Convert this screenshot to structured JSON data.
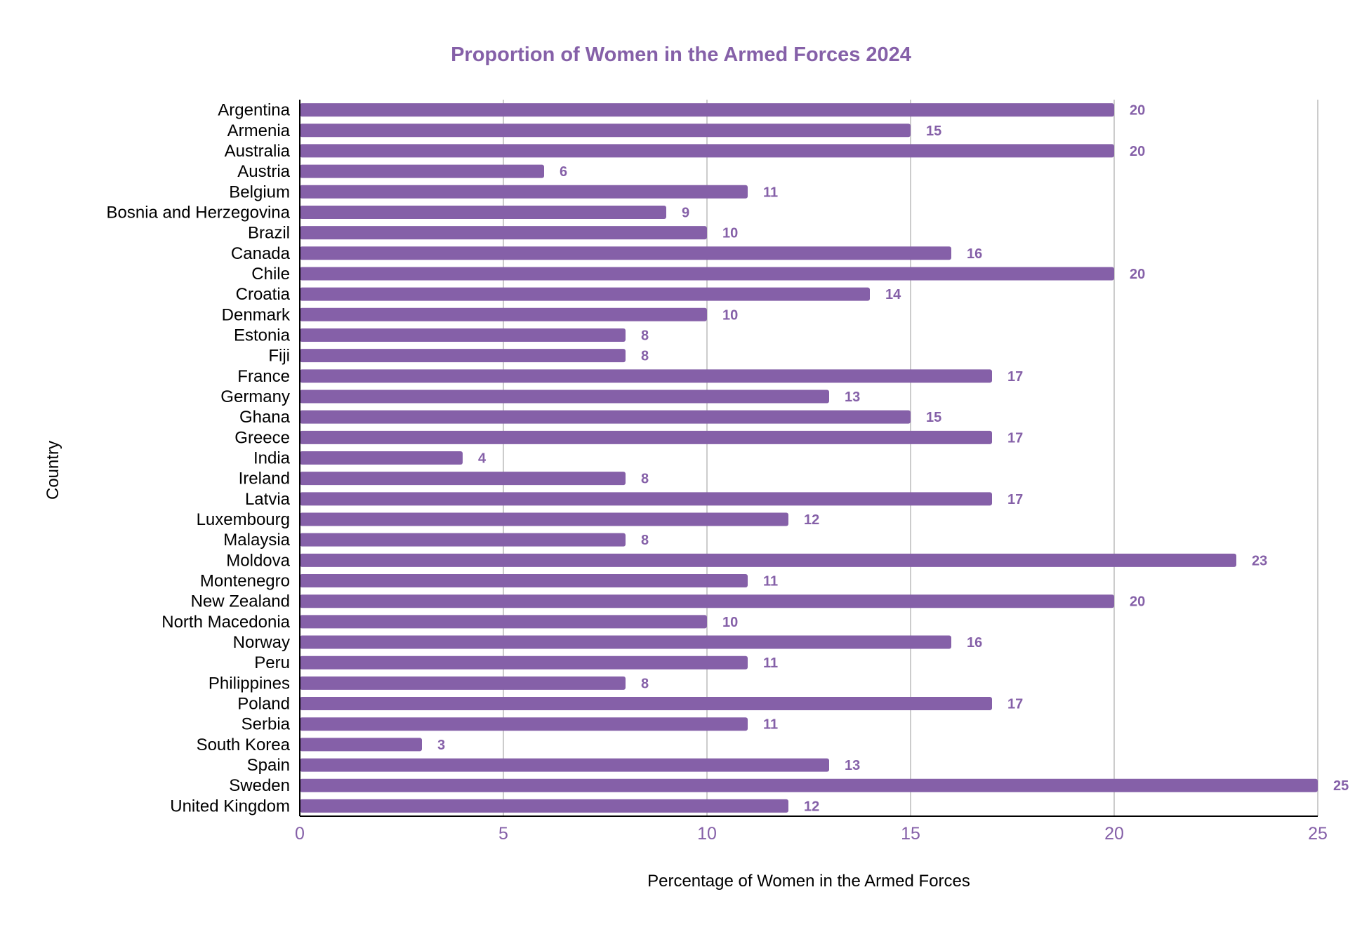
{
  "chart_data": {
    "type": "bar",
    "orientation": "horizontal",
    "title": "Proportion of Women in the Armed Forces 2024",
    "xlabel": "Percentage of Women in the Armed Forces",
    "ylabel": "Country",
    "xlim": [
      0,
      25
    ],
    "x_ticks": [
      0,
      5,
      10,
      15,
      20,
      25
    ],
    "grid": true,
    "legend": "none",
    "data_labels": true,
    "categories": [
      "Argentina",
      "Armenia",
      "Australia",
      "Austria",
      "Belgium",
      "Bosnia and Herzegovina",
      "Brazil",
      "Canada",
      "Chile",
      "Croatia",
      "Denmark",
      "Estonia",
      "Fiji",
      "France",
      "Germany",
      "Ghana",
      "Greece",
      "India",
      "Ireland",
      "Latvia",
      "Luxembourg",
      "Malaysia",
      "Moldova",
      "Montenegro",
      "New Zealand",
      "North Macedonia",
      "Norway",
      "Peru",
      "Philippines",
      "Poland",
      "Serbia",
      "South Korea",
      "Spain",
      "Sweden",
      "United Kingdom"
    ],
    "values": [
      20,
      15,
      20,
      6,
      11,
      9,
      10,
      16,
      20,
      14,
      10,
      8,
      8,
      17,
      13,
      15,
      17,
      4,
      8,
      17,
      12,
      8,
      23,
      11,
      20,
      10,
      16,
      11,
      8,
      17,
      11,
      3,
      13,
      25,
      12
    ]
  },
  "colors": {
    "bar": "#8560a8",
    "title": "#8560a8",
    "data_label": "#8560a8",
    "tick_label": "#8560a8",
    "gridline": "#cccccc",
    "axis_line": "#000000",
    "text": "#000000"
  }
}
